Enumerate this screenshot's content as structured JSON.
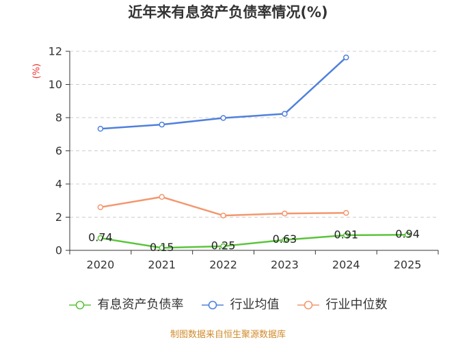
{
  "chart_data": {
    "type": "line",
    "title": "近年来有息资产负债率情况(%)",
    "xlabel": "",
    "ylabel": "(%)",
    "categories": [
      "2020",
      "2021",
      "2022",
      "2023",
      "2024",
      "2025"
    ],
    "ylim": [
      0,
      12
    ],
    "yticks": [
      0,
      2,
      4,
      6,
      8,
      10,
      12
    ],
    "grid": true,
    "legend": "bottom",
    "colors": {
      "axis": "#333333",
      "grid": "#cccccc",
      "ylabel": "#e8302f",
      "text": "#333333"
    },
    "series": [
      {
        "name": "有息资产负债率",
        "color": "#5ac43a",
        "data_labels": true,
        "values": [
          0.74,
          0.15,
          0.25,
          0.63,
          0.91,
          0.94
        ]
      },
      {
        "name": "行业均值",
        "color": "#4f80dc",
        "data_labels": false,
        "values": [
          7.33,
          7.58,
          7.98,
          8.23,
          11.63,
          null
        ]
      },
      {
        "name": "行业中位数",
        "color": "#f4966c",
        "data_labels": false,
        "values": [
          2.6,
          3.22,
          2.1,
          2.22,
          2.26,
          null
        ]
      }
    ]
  },
  "footer": {
    "source_note": "制图数据来自恒生聚源数据库",
    "color": "#d08b2c"
  }
}
